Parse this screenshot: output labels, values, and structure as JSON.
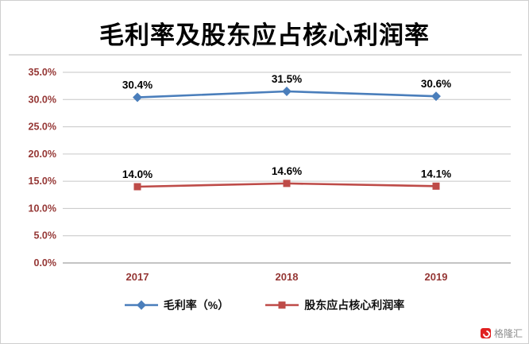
{
  "chart_data": {
    "type": "line",
    "title": "毛利率及股东应占核心利润率",
    "categories": [
      "2017",
      "2018",
      "2019"
    ],
    "series": [
      {
        "name": "毛利率（%）",
        "color": "#4a7ebb",
        "marker": "diamond",
        "values": [
          30.4,
          31.5,
          30.6
        ],
        "data_labels": [
          "30.4%",
          "31.5%",
          "30.6%"
        ]
      },
      {
        "name": "股东应占核心利润率",
        "color": "#be4b48",
        "marker": "square",
        "values": [
          14.0,
          14.6,
          14.1
        ],
        "data_labels": [
          "14.0%",
          "14.6%",
          "14.1%"
        ]
      }
    ],
    "y_axis": {
      "min": 0,
      "max": 35,
      "step": 5,
      "tick_labels": [
        "0.0%",
        "5.0%",
        "10.0%",
        "15.0%",
        "20.0%",
        "25.0%",
        "30.0%",
        "35.0%"
      ]
    },
    "grid": true,
    "legend_position": "bottom"
  },
  "colors": {
    "axis_label": "#953735",
    "data_label": "#000000",
    "gridline": "#c6c6c6",
    "axis_line": "#8a8a8a",
    "title_divider": "#b9b9b9"
  },
  "watermark": {
    "text": "格隆汇",
    "logo_color": "#e02020"
  }
}
